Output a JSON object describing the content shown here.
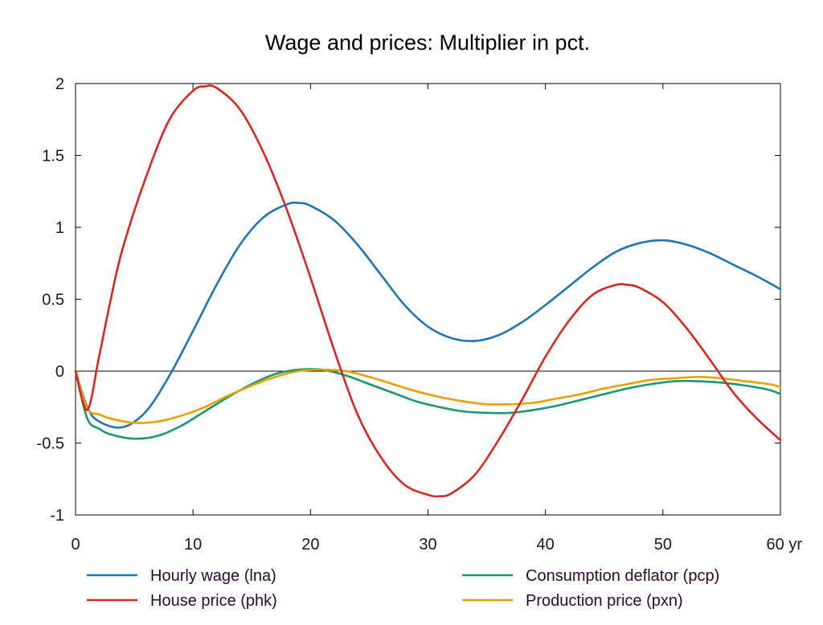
{
  "chart_data": {
    "type": "line",
    "title": "Wage and prices: Multiplier in pct.",
    "xlabel": "",
    "ylabel": "",
    "xlim": [
      0,
      60
    ],
    "ylim": [
      -1,
      2
    ],
    "x_ticks": [
      {
        "value": 0,
        "label": "0"
      },
      {
        "value": 10,
        "label": "10"
      },
      {
        "value": 20,
        "label": "20"
      },
      {
        "value": 30,
        "label": "30"
      },
      {
        "value": 40,
        "label": "40"
      },
      {
        "value": 50,
        "label": "50"
      },
      {
        "value": 60,
        "label": "60 yr"
      }
    ],
    "y_ticks": [
      {
        "value": -1,
        "label": "-1"
      },
      {
        "value": -0.5,
        "label": "-0.5"
      },
      {
        "value": 0,
        "label": "0"
      },
      {
        "value": 0.5,
        "label": "0.5"
      },
      {
        "value": 1,
        "label": "1"
      },
      {
        "value": 1.5,
        "label": "1.5"
      },
      {
        "value": 2,
        "label": "2"
      }
    ],
    "zero_line": true,
    "grid": false,
    "legend_position": "bottom",
    "series": [
      {
        "name": "Hourly wage (lna)",
        "color": "#1f77b4",
        "x": [
          0,
          1,
          2,
          4,
          6,
          8,
          10,
          12,
          14,
          16,
          18,
          19,
          20,
          22,
          24,
          26,
          28,
          30,
          32,
          34,
          36,
          38,
          40,
          42,
          44,
          46,
          48,
          50,
          52,
          54,
          56,
          58,
          60
        ],
        "y": [
          0,
          -0.25,
          -0.35,
          -0.39,
          -0.28,
          -0.03,
          0.28,
          0.6,
          0.88,
          1.07,
          1.16,
          1.17,
          1.15,
          1.05,
          0.88,
          0.67,
          0.46,
          0.31,
          0.23,
          0.21,
          0.25,
          0.34,
          0.46,
          0.59,
          0.72,
          0.83,
          0.89,
          0.91,
          0.88,
          0.82,
          0.74,
          0.66,
          0.57
        ]
      },
      {
        "name": "Consumption deflator (pcp)",
        "color": "#1a9a6c",
        "x": [
          0,
          1,
          2,
          3,
          5,
          7,
          9,
          11,
          13,
          15,
          17,
          19,
          21,
          23,
          25,
          27,
          29,
          31,
          33,
          35,
          37,
          39,
          41,
          43,
          45,
          47,
          49,
          51,
          53,
          55,
          57,
          59,
          60
        ],
        "y": [
          0,
          -0.33,
          -0.4,
          -0.44,
          -0.47,
          -0.45,
          -0.38,
          -0.28,
          -0.18,
          -0.09,
          -0.02,
          0.01,
          0.01,
          -0.03,
          -0.09,
          -0.15,
          -0.21,
          -0.25,
          -0.28,
          -0.29,
          -0.29,
          -0.27,
          -0.24,
          -0.2,
          -0.16,
          -0.12,
          -0.09,
          -0.07,
          -0.07,
          -0.08,
          -0.1,
          -0.13,
          -0.16
        ]
      },
      {
        "name": "House price (phk)",
        "color": "#d62a20",
        "x": [
          0,
          1,
          2,
          3,
          4,
          6,
          8,
          10,
          11,
          12,
          14,
          16,
          18,
          20,
          22,
          24,
          26,
          28,
          30,
          31,
          32,
          34,
          36,
          38,
          40,
          42,
          44,
          46,
          47,
          48,
          50,
          52,
          54,
          56,
          58,
          60
        ],
        "y": [
          0,
          -0.27,
          0.1,
          0.5,
          0.85,
          1.35,
          1.75,
          1.95,
          1.98,
          1.97,
          1.82,
          1.52,
          1.12,
          0.65,
          0.15,
          -0.3,
          -0.6,
          -0.79,
          -0.86,
          -0.87,
          -0.85,
          -0.72,
          -0.48,
          -0.2,
          0.1,
          0.35,
          0.53,
          0.6,
          0.6,
          0.58,
          0.48,
          0.3,
          0.08,
          -0.15,
          -0.33,
          -0.48
        ]
      },
      {
        "name": "Production price (pxn)",
        "color": "#e8a200",
        "x": [
          0,
          1,
          2,
          3,
          5,
          7,
          9,
          11,
          13,
          15,
          17,
          19,
          21,
          23,
          25,
          27,
          29,
          31,
          33,
          35,
          37,
          39,
          41,
          43,
          45,
          47,
          49,
          51,
          53,
          55,
          57,
          59,
          60
        ],
        "y": [
          0,
          -0.26,
          -0.3,
          -0.33,
          -0.36,
          -0.35,
          -0.31,
          -0.25,
          -0.17,
          -0.1,
          -0.04,
          0,
          0.01,
          0,
          -0.04,
          -0.09,
          -0.14,
          -0.18,
          -0.21,
          -0.23,
          -0.23,
          -0.22,
          -0.19,
          -0.16,
          -0.12,
          -0.09,
          -0.06,
          -0.05,
          -0.04,
          -0.05,
          -0.07,
          -0.09,
          -0.11
        ]
      }
    ]
  }
}
